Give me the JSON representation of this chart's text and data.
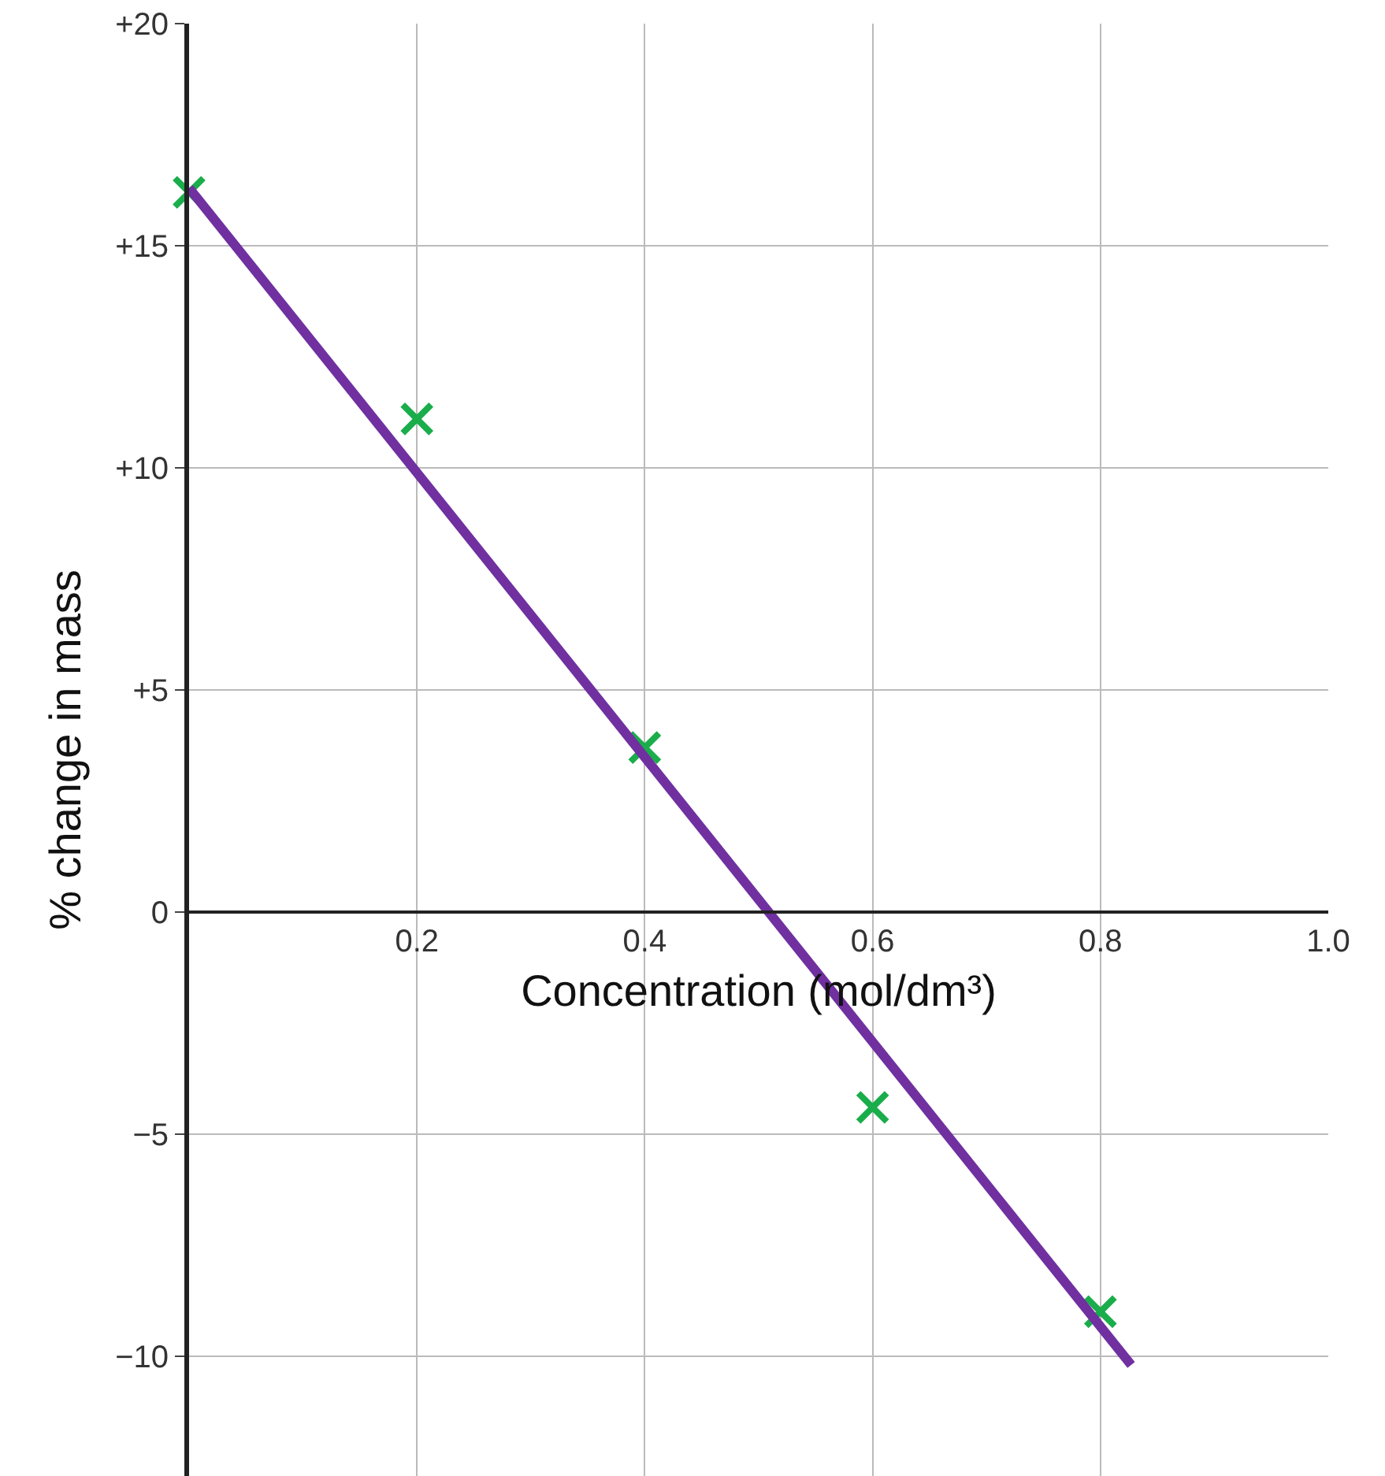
{
  "chart_data": {
    "type": "scatter",
    "xlabel": "Concentration (mol/dm³)",
    "ylabel": "% change in mass",
    "x": [
      0,
      0.2,
      0.4,
      0.6,
      0.8
    ],
    "series": [
      {
        "type": "scatter",
        "color": "#1aad4b",
        "values": [
          16.2,
          11.1,
          3.7,
          -4.4,
          -9.0
        ],
        "marker": "cross"
      },
      {
        "type": "line",
        "color": "#7030a0",
        "x": [
          0,
          0.827
        ],
        "values": [
          16.3,
          -10.2
        ],
        "marker": "none",
        "line_style": "solid"
      }
    ],
    "xlim": [
      0,
      1.0
    ],
    "ylim": [
      -12.7,
      20
    ],
    "xticks": [
      0.2,
      0.4,
      0.6,
      0.8,
      {
        "value": 1.0,
        "label": "1.0"
      }
    ],
    "yticks": [
      {
        "value": 20,
        "label": "+20"
      },
      {
        "value": 15,
        "label": "+15"
      },
      {
        "value": 10,
        "label": "+10"
      },
      {
        "value": 5,
        "label": "+5"
      },
      0,
      {
        "value": -5,
        "label": "−5"
      },
      {
        "value": -10,
        "label": "−10"
      }
    ],
    "grid": true
  }
}
